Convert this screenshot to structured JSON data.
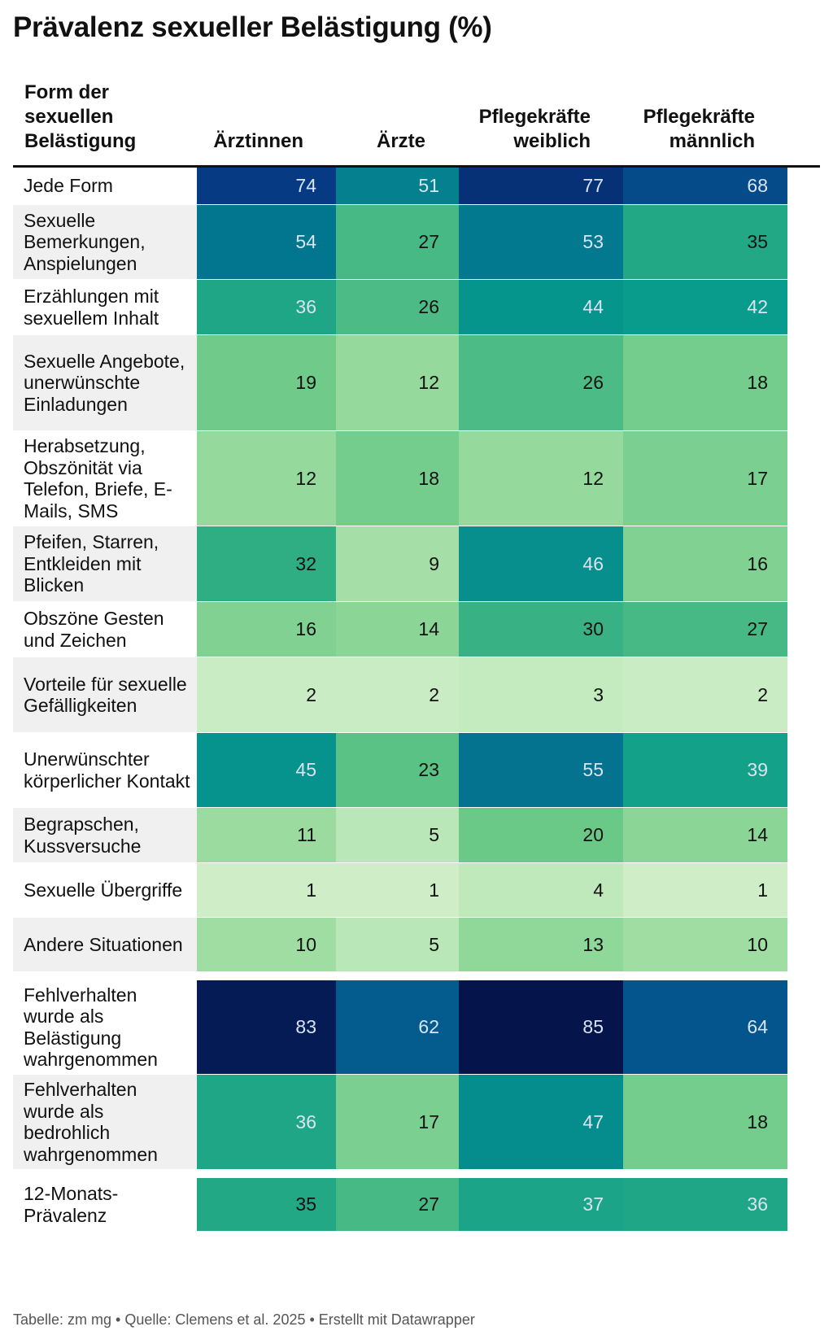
{
  "title": "Prävalenz sexueller Belästigung (%)",
  "footer": "Tabelle: zm mg • Quelle: Clemens et al. 2025 • Erstellt mit Datawrapper",
  "chart_data": {
    "type": "table",
    "columns": [
      {
        "key": "label",
        "label": "Form der sexuellen Belästigung"
      },
      {
        "key": "aerztinnen",
        "label": "Ärztinnen"
      },
      {
        "key": "aerzte",
        "label": "Ärzte"
      },
      {
        "key": "pflege_w",
        "label": "Pflegekräfte weiblich"
      },
      {
        "key": "pflege_m",
        "label": "Pflegekräfte männlich"
      }
    ],
    "rows": [
      {
        "label": "Jede Form",
        "values": [
          74,
          51,
          77,
          68
        ]
      },
      {
        "label": "Sexuelle Bemerkungen, Anspielungen",
        "values": [
          54,
          27,
          53,
          35
        ]
      },
      {
        "label": "Erzählungen mit sexuellem Inhalt",
        "values": [
          36,
          26,
          44,
          42
        ]
      },
      {
        "label": "Sexuelle Angebote, unerwünschte Einladungen",
        "values": [
          19,
          12,
          26,
          18
        ]
      },
      {
        "label": "Herabsetzung, Obszönität via Telefon, Briefe, E-Mails, SMS",
        "values": [
          12,
          18,
          12,
          17
        ]
      },
      {
        "label": "Pfeifen, Starren, Entkleiden mit Blicken",
        "values": [
          32,
          9,
          46,
          16
        ]
      },
      {
        "label": "Obszöne Gesten und Zeichen",
        "values": [
          16,
          14,
          30,
          27
        ]
      },
      {
        "label": "Vorteile für sexuelle Gefälligkeiten",
        "values": [
          2,
          2,
          3,
          2
        ]
      },
      {
        "label": "Unerwünschter körperlicher Kontakt",
        "values": [
          45,
          23,
          55,
          39
        ]
      },
      {
        "label": "Begrapschen, Kussversuche",
        "values": [
          11,
          5,
          20,
          14
        ]
      },
      {
        "label": "Sexuelle Übergriffe",
        "values": [
          1,
          1,
          4,
          1
        ]
      },
      {
        "label": "Andere Situationen",
        "values": [
          10,
          5,
          13,
          10
        ]
      },
      {
        "label": "Fehlverhalten wurde als Belästigung wahrgenommen",
        "values": [
          83,
          62,
          85,
          64
        ]
      },
      {
        "label": "Fehlverhalten wurde als bedrohlich wahrgenommen",
        "values": [
          36,
          17,
          47,
          18
        ]
      },
      {
        "label": "12-Monats-Prävalenz",
        "values": [
          35,
          27,
          37,
          36
        ]
      }
    ],
    "color_scale": {
      "min": 0,
      "max": 85,
      "stops": [
        "#d4f0cc",
        "#9ddca0",
        "#64c685",
        "#2fae84",
        "#079a8c",
        "#03798f",
        "#04568e",
        "#063a84",
        "#05144a"
      ]
    }
  }
}
